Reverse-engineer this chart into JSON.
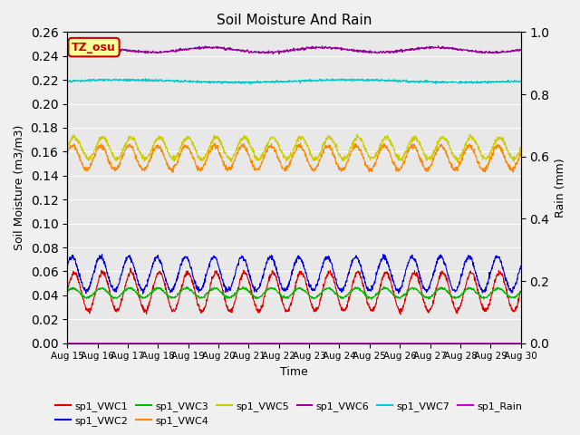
{
  "title": "Soil Moisture And Rain",
  "xlabel": "Time",
  "ylabel_left": "Soil Moisture (m3/m3)",
  "ylabel_right": "Rain (mm)",
  "ylim_left": [
    0.0,
    0.26
  ],
  "ylim_right": [
    0.0,
    1.0
  ],
  "xlim": [
    0,
    15
  ],
  "x_tick_labels": [
    "Aug 15",
    "Aug 16",
    "Aug 17",
    "Aug 18",
    "Aug 19",
    "Aug 20",
    "Aug 21",
    "Aug 22",
    "Aug 23",
    "Aug 24",
    "Aug 25",
    "Aug 26",
    "Aug 27",
    "Aug 28",
    "Aug 29",
    "Aug 30"
  ],
  "annotation_text": "TZ_osu",
  "annotation_bg": "#ffff99",
  "annotation_edge": "#cc0000",
  "series": {
    "sp1_VWC1": {
      "color": "#dd0000",
      "base": 0.043,
      "amp": 0.016,
      "cycles": 16,
      "phase": 0.0,
      "noise": 0.001
    },
    "sp1_VWC2": {
      "color": "#0000dd",
      "base": 0.058,
      "amp": 0.014,
      "cycles": 16,
      "phase": 0.5,
      "noise": 0.001
    },
    "sp1_VWC3": {
      "color": "#00bb00",
      "base": 0.042,
      "amp": 0.004,
      "cycles": 16,
      "phase": 0.3,
      "noise": 0.0005
    },
    "sp1_VWC4": {
      "color": "#ff8800",
      "base": 0.155,
      "amp": 0.01,
      "cycles": 16,
      "phase": 0.4,
      "noise": 0.001
    },
    "sp1_VWC5": {
      "color": "#cccc00",
      "base": 0.163,
      "amp": 0.009,
      "cycles": 16,
      "phase": 0.0,
      "noise": 0.001
    },
    "sp1_VWC6": {
      "color": "#990099",
      "base": 0.245,
      "amp": 0.002,
      "cycles": 4,
      "phase": 0.0,
      "noise": 0.0005
    },
    "sp1_VWC7": {
      "color": "#00cccc",
      "base": 0.219,
      "amp": 0.001,
      "cycles": 2,
      "phase": 0.0,
      "noise": 0.0005
    },
    "sp1_Rain": {
      "color": "#cc00cc",
      "base": 0.0,
      "amp": 0.0,
      "cycles": 0,
      "phase": 0.0,
      "noise": 0.0
    }
  },
  "background_color": "#e8e8e8",
  "grid_color": "#ffffff",
  "fig_bg": "#f0f0f0",
  "legend_items_row1": [
    "sp1_VWC1",
    "sp1_VWC2",
    "sp1_VWC3",
    "sp1_VWC4",
    "sp1_VWC5",
    "sp1_VWC6"
  ],
  "legend_items_row2": [
    "sp1_VWC7",
    "sp1_Rain"
  ]
}
